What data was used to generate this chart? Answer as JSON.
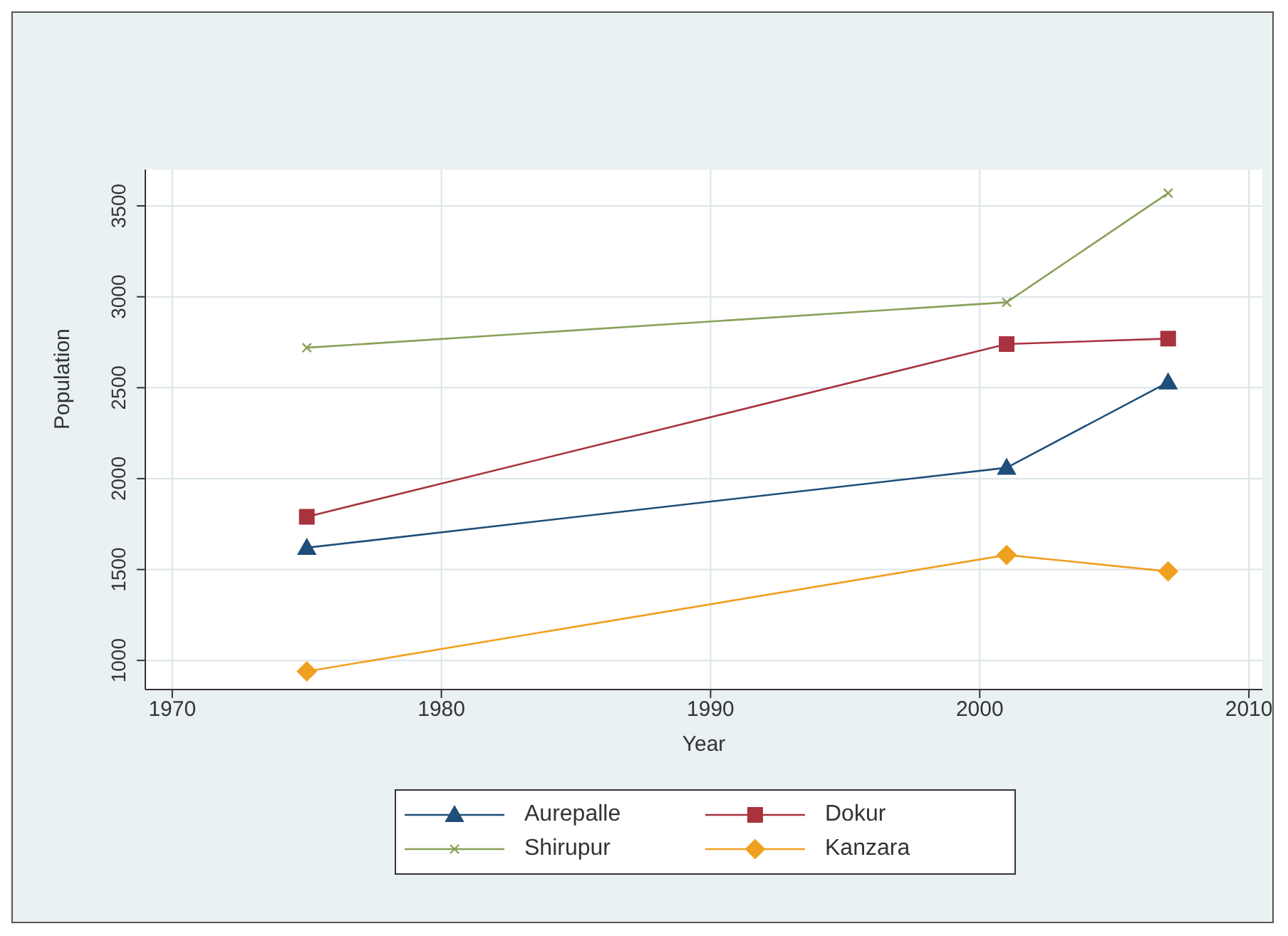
{
  "chart_data": {
    "type": "line",
    "xlabel": "Year",
    "ylabel": "Population",
    "x": [
      1975,
      2001,
      2007
    ],
    "series": [
      {
        "name": "Aurepalle",
        "color": "#1f4e79",
        "marker": "triangle",
        "values": [
          1620,
          2060,
          2530
        ]
      },
      {
        "name": "Dokur",
        "color": "#a8323e",
        "marker": "square",
        "values": [
          1790,
          2740,
          2770
        ]
      },
      {
        "name": "Shirupur",
        "color": "#8aa05a",
        "marker": "cross",
        "values": [
          2720,
          2970,
          3570
        ]
      },
      {
        "name": "Kanzara",
        "color": "#f0a020",
        "marker": "diamond",
        "values": [
          940,
          1580,
          1490
        ]
      }
    ],
    "xlim": [
      1969,
      2010.5
    ],
    "xticks": [
      1970,
      1980,
      1990,
      2000,
      2010
    ],
    "ylim": [
      840,
      3700
    ],
    "yticks": [
      1000,
      1500,
      2000,
      2500,
      3000,
      3500
    ],
    "grid": true,
    "legend": "bottom"
  }
}
